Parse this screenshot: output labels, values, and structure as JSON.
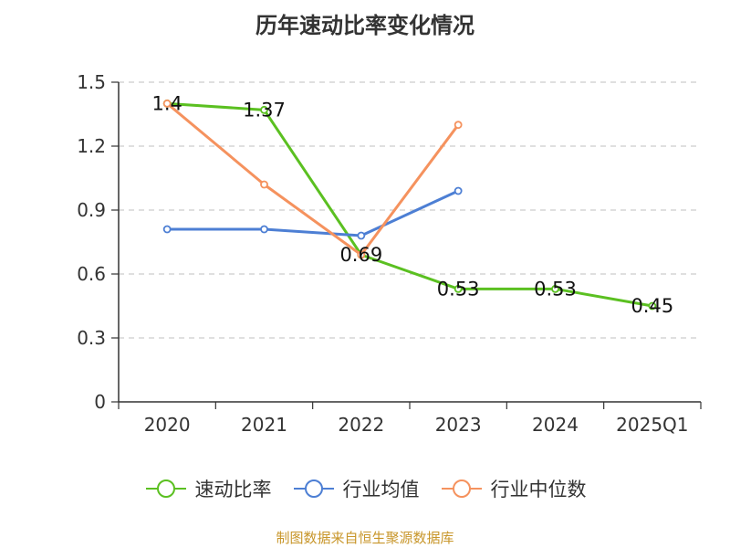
{
  "chart_data": {
    "type": "line",
    "title": "历年速动比率变化情况",
    "categories": [
      "2020",
      "2021",
      "2022",
      "2023",
      "2024",
      "2025Q1"
    ],
    "ylim": [
      0,
      1.5
    ],
    "yticks": [
      "0",
      "0.3",
      "0.6",
      "0.9",
      "1.2",
      "1.5"
    ],
    "grid": true,
    "legend_position": "bottom",
    "series": [
      {
        "name": "速动比率",
        "color": "#5bc021",
        "values": [
          1.4,
          1.37,
          0.69,
          0.53,
          0.53,
          0.45
        ],
        "labels": [
          "1.4",
          "1.37",
          "0.69",
          "0.53",
          "0.53",
          "0.45"
        ],
        "show_labels": true
      },
      {
        "name": "行业均值",
        "color": "#4d7fd4",
        "values": [
          0.81,
          0.81,
          0.78,
          0.99,
          null,
          null
        ],
        "show_labels": false
      },
      {
        "name": "行业中位数",
        "color": "#f5925e",
        "values": [
          1.4,
          1.02,
          0.69,
          1.3,
          null,
          null
        ],
        "show_labels": false
      }
    ]
  },
  "source": "制图数据来自恒生聚源数据库"
}
